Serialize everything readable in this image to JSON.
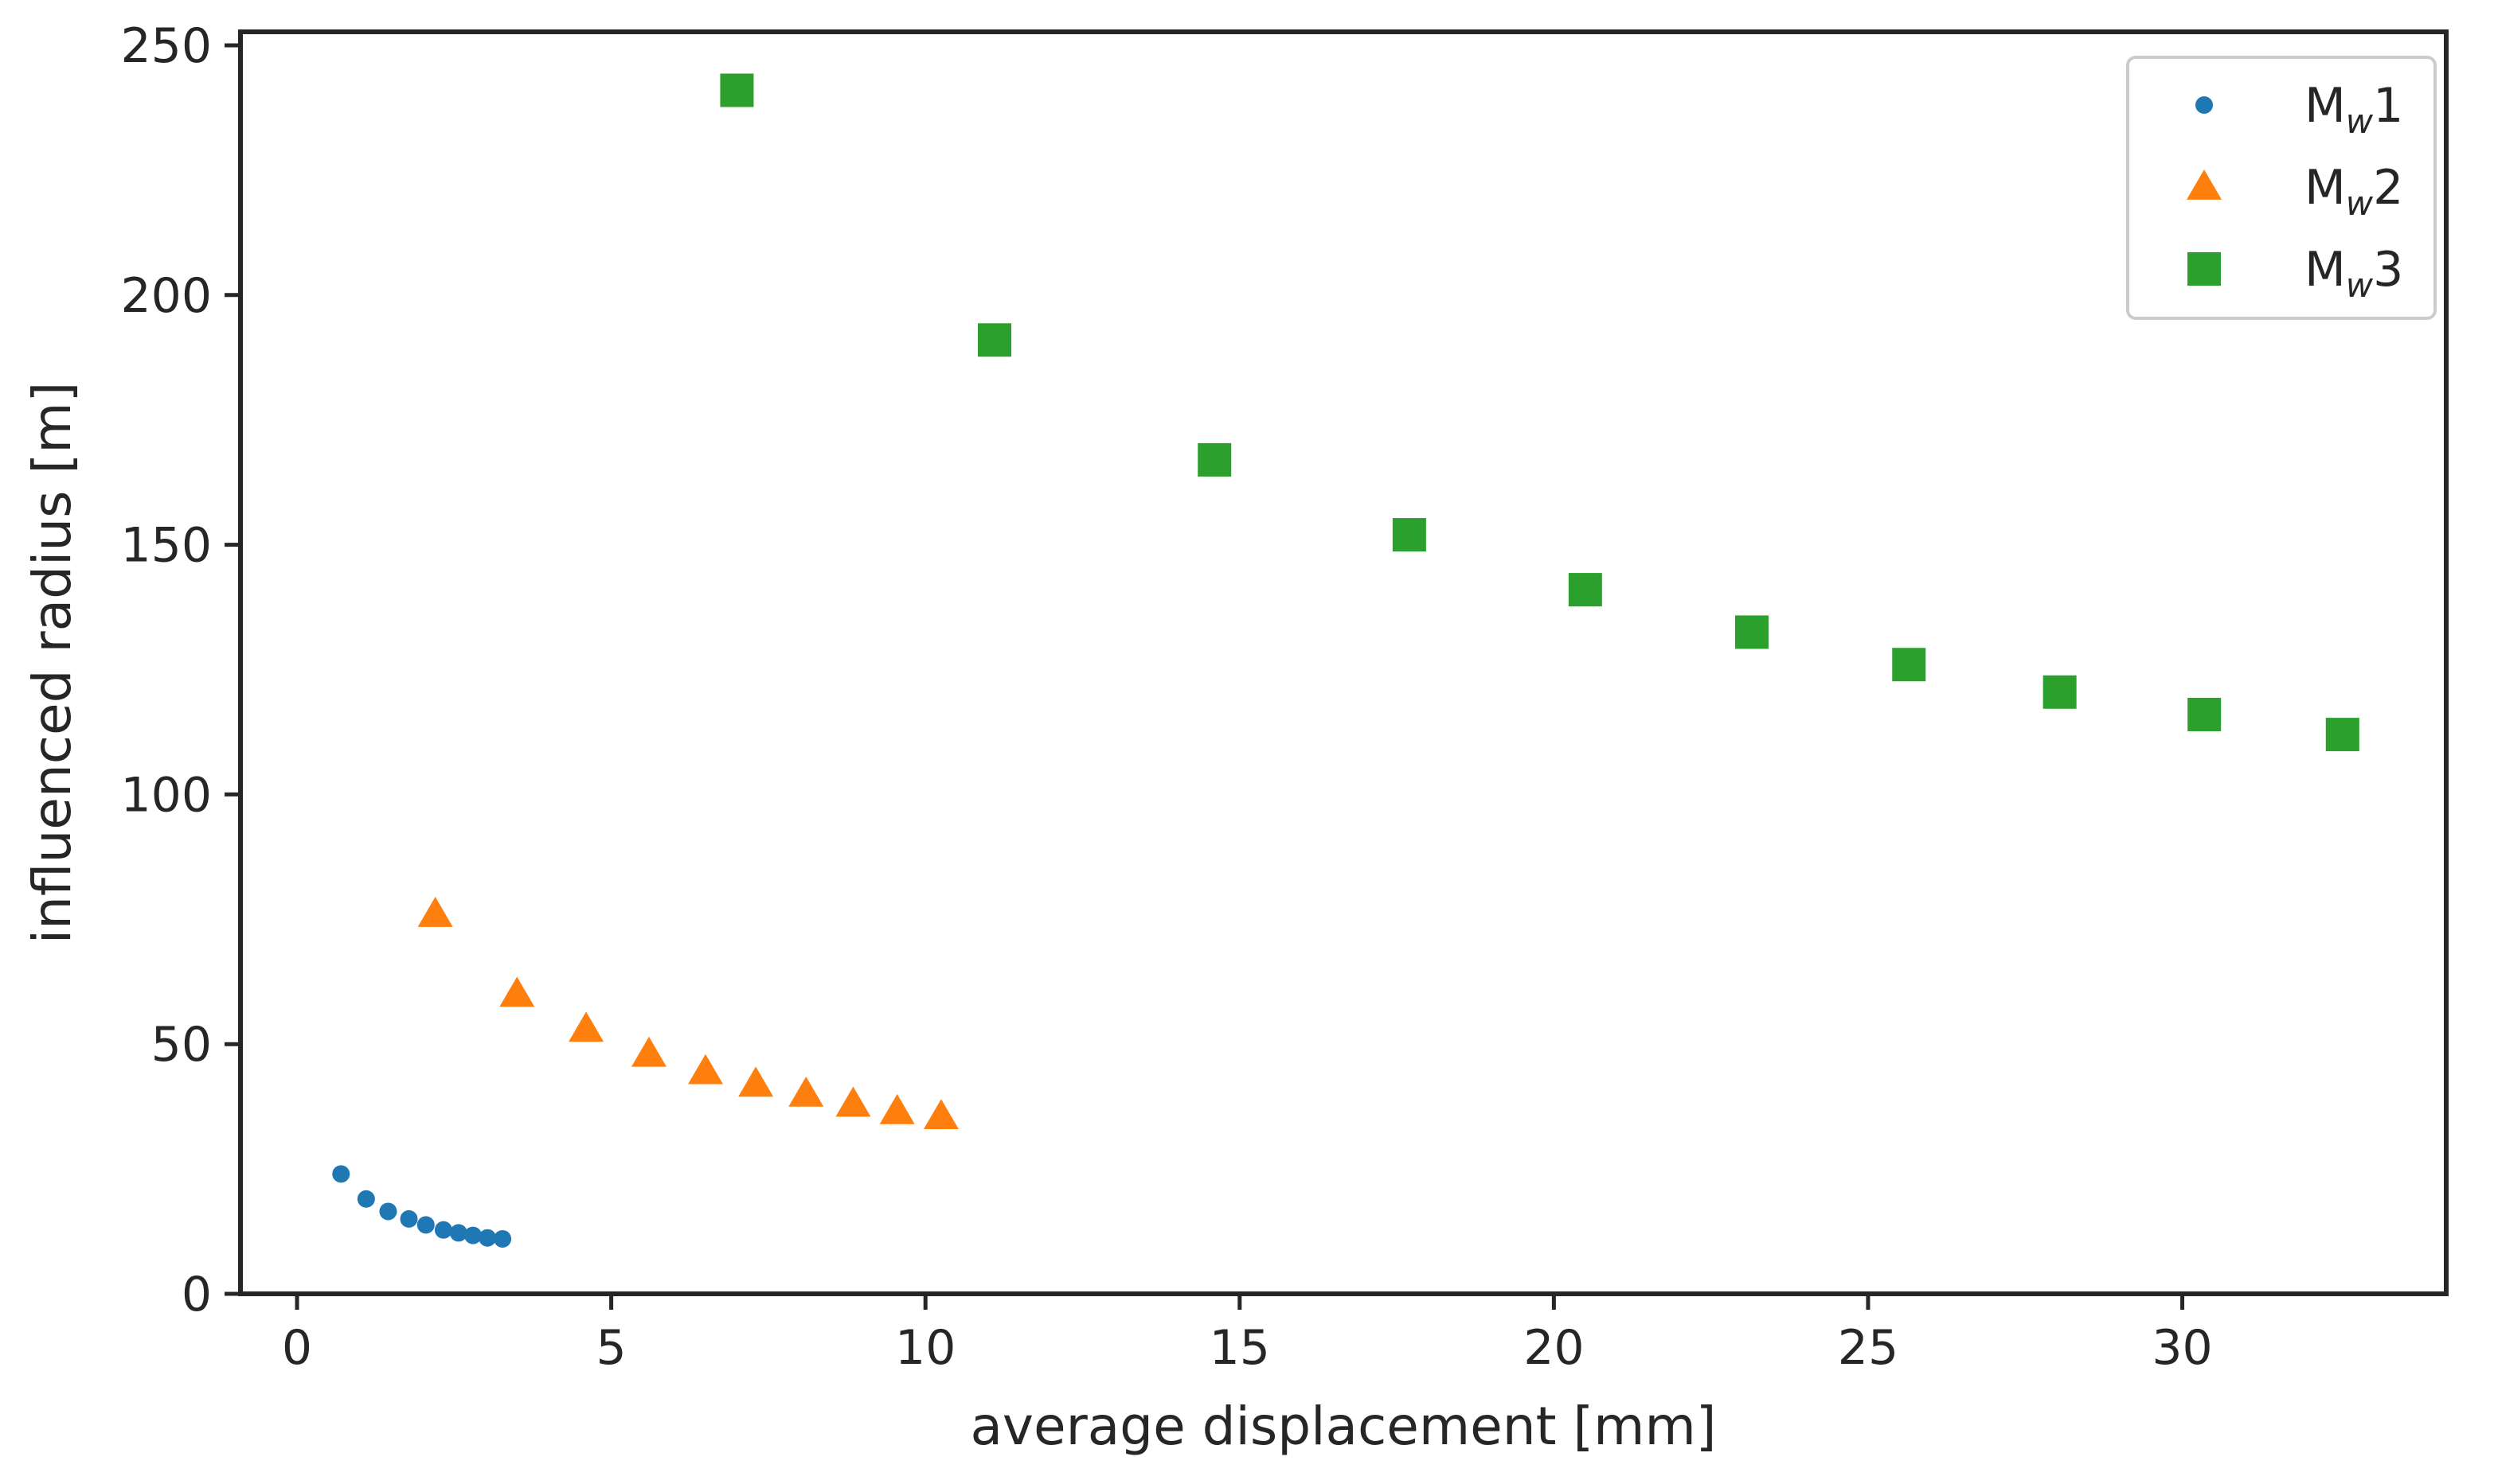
{
  "chart_data": {
    "type": "scatter",
    "title": "",
    "xlabel": "average displacement [mm]",
    "ylabel": "influenced radius [m]",
    "xlim": [
      -0.9,
      34.2
    ],
    "ylim": [
      0,
      250
    ],
    "xticks": [
      0,
      5,
      10,
      15,
      20,
      25,
      30
    ],
    "yticks": [
      0,
      50,
      100,
      150,
      200,
      250
    ],
    "grid": false,
    "legend_position": "top-right",
    "series": [
      {
        "name_main": "M",
        "name_sub": "w",
        "name_suffix": "1",
        "marker": "circle",
        "color": "#1f77b4",
        "x": [
          0.7,
          1.1,
          1.45,
          1.78,
          2.05,
          2.33,
          2.57,
          2.8,
          3.03,
          3.27
        ],
        "y": [
          24.0,
          19.0,
          16.5,
          15.0,
          13.8,
          12.8,
          12.2,
          11.7,
          11.2,
          11.0
        ]
      },
      {
        "name_main": "M",
        "name_sub": "w",
        "name_suffix": "2",
        "marker": "triangle",
        "color": "#ff7f0e",
        "x": [
          2.2,
          3.5,
          4.6,
          5.6,
          6.5,
          7.3,
          8.1,
          8.85,
          9.55,
          10.25
        ],
        "y": [
          76,
          60,
          53,
          48,
          44.5,
          42,
          40,
          38,
          36.5,
          35.5
        ]
      },
      {
        "name_main": "M",
        "name_sub": "w",
        "name_suffix": "3",
        "marker": "square",
        "color": "#2ca02c",
        "x": [
          7.0,
          11.1,
          14.6,
          17.7,
          20.5,
          23.15,
          25.65,
          28.05,
          30.35,
          32.55
        ],
        "y": [
          241,
          191,
          167,
          152,
          141,
          132.5,
          126,
          120.5,
          116,
          112
        ]
      }
    ]
  }
}
